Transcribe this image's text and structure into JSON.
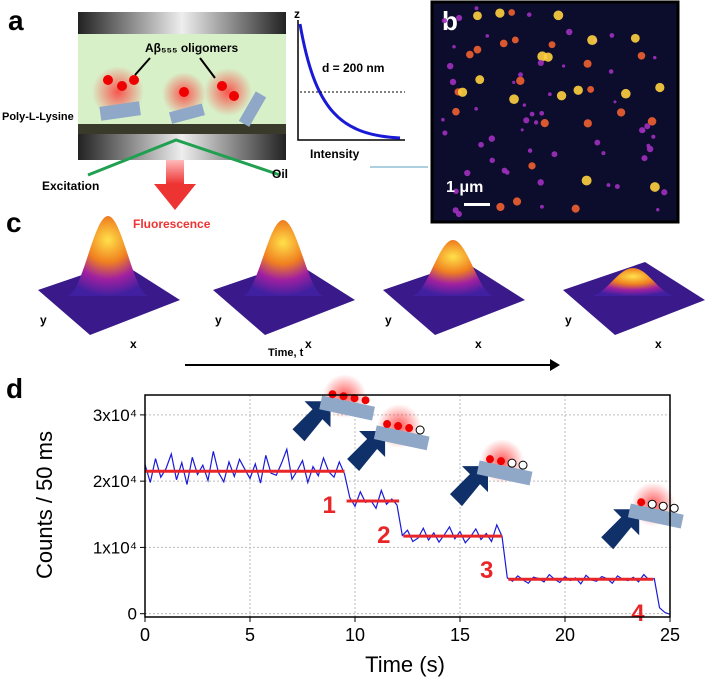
{
  "panels": {
    "a": {
      "label": "a",
      "oligomers": "Aβ₅₅₅ oligomers",
      "poly_lysine": "Poly-L-Lysine",
      "excitation": "Excitation",
      "oil": "Oil",
      "fluorescence": "Fluorescence",
      "z_axis": "z",
      "depth": "d = 200 nm",
      "intensity": "Intensity"
    },
    "b": {
      "label": "b",
      "scale_bar": "1 μm"
    },
    "c": {
      "label": "c",
      "axis_y": "y",
      "axis_x": "x",
      "time": "Time, t"
    },
    "d": {
      "label": "d"
    }
  },
  "chart_data": {
    "type": "line",
    "x_label": "Time (s)",
    "y_label": "Counts / 50 ms",
    "xlim": [
      0,
      25
    ],
    "xticks": [
      0,
      5,
      10,
      15,
      20,
      25
    ],
    "ylim": [
      -500,
      33000
    ],
    "yticks": [
      0,
      {
        "value": 10000,
        "label": "1x10⁴"
      },
      {
        "value": 20000,
        "label": "2x10⁴"
      },
      {
        "value": 30000,
        "label": "3x10⁴"
      }
    ],
    "grid": true,
    "x": [
      0,
      0.25,
      0.5,
      0.75,
      1,
      1.25,
      1.5,
      1.75,
      2,
      2.25,
      2.5,
      2.75,
      3,
      3.25,
      3.5,
      3.75,
      4,
      4.25,
      4.5,
      4.75,
      5,
      5.25,
      5.5,
      5.75,
      6,
      6.25,
      6.5,
      6.75,
      7,
      7.25,
      7.5,
      7.75,
      8,
      8.25,
      8.5,
      8.75,
      9,
      9.25,
      9.5,
      9.75,
      10,
      10.25,
      10.5,
      10.75,
      11,
      11.25,
      11.5,
      11.75,
      12,
      12.25,
      12.5,
      12.75,
      13,
      13.25,
      13.5,
      13.75,
      14,
      14.25,
      14.5,
      14.75,
      15,
      15.25,
      15.5,
      15.75,
      16,
      16.25,
      16.5,
      16.75,
      17,
      17.25,
      17.5,
      17.75,
      18,
      18.25,
      18.5,
      18.75,
      19,
      19.25,
      19.5,
      19.75,
      20,
      20.25,
      20.5,
      20.75,
      21,
      21.25,
      21.5,
      21.75,
      22,
      22.25,
      22.5,
      22.75,
      23,
      23.25,
      23.5,
      23.75,
      24,
      24.25,
      24.5,
      24.75,
      25
    ],
    "series": [
      {
        "color": "#1a1ad6",
        "values": [
          22500,
          19800,
          23400,
          20600,
          21900,
          24100,
          20200,
          22800,
          19500,
          23600,
          21000,
          22400,
          20100,
          24500,
          21300,
          19900,
          22900,
          20700,
          23300,
          21800,
          20400,
          22600,
          19700,
          23900,
          21200,
          20900,
          22700,
          24800,
          20300,
          21600,
          23100,
          19800,
          22200,
          20800,
          23500,
          21400,
          20600,
          22900,
          21100,
          17500,
          16200,
          18400,
          16800,
          17100,
          15900,
          18600,
          16500,
          17300,
          16400,
          11800,
          12600,
          10900,
          11400,
          12900,
          11100,
          12200,
          10800,
          11900,
          13100,
          11300,
          12400,
          10700,
          11600,
          12800,
          11200,
          12100,
          10900,
          13400,
          11700,
          5400,
          4900,
          5700,
          5100,
          4600,
          5500,
          5300,
          4800,
          5900,
          5200,
          4700,
          5600,
          5000,
          5400,
          4500,
          5800,
          5100,
          4900,
          5600,
          5300,
          4600,
          5700,
          5200,
          5000,
          5500,
          4800,
          5900,
          5100,
          5300,
          900,
          200,
          -100
        ]
      }
    ],
    "steps": {
      "color": "#e8262a",
      "start": [
        0,
        9.6,
        12.3,
        17.3
      ],
      "end": [
        9.5,
        12.1,
        17.0,
        24.2
      ],
      "values": [
        21500,
        17000,
        11700,
        5200
      ],
      "labels": [
        "1",
        "2",
        "3",
        "4"
      ]
    }
  }
}
